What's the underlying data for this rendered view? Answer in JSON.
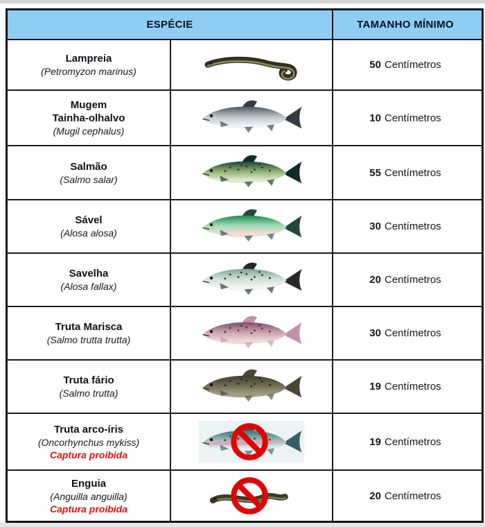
{
  "header": {
    "especie": "ESPÉCIE",
    "tamanho": "TAMANHO MÍNIMO"
  },
  "unit": "Centímetros",
  "colors": {
    "header_bg": "#8fcef4",
    "border": "#15151d",
    "text": "#101016",
    "prohibited_red": "#e01010",
    "prohibition_sign": "#e00505"
  },
  "rows": [
    {
      "names": [
        "Lampreia"
      ],
      "sci": "(Petromyzon marinus)",
      "size": "50",
      "fish": {
        "icon": "lamprey-fish-icon",
        "type": "eel",
        "variant": "lamprey",
        "body": "#32301f",
        "highlight": "#9c9a72",
        "prohibited": false
      }
    },
    {
      "names": [
        "Mugem",
        "Tainha-olhalvo"
      ],
      "sci": "(Mugil cephalus)",
      "size": "10",
      "fish": {
        "icon": "mullet-fish-icon",
        "type": "fish",
        "back": "#4e565e",
        "body": "#b9c1c7",
        "belly": "#f0f2f3",
        "tail": "#343b42",
        "prohibited": false
      }
    },
    {
      "names": [
        "Salmão"
      ],
      "sci": "(Salmo salar)",
      "size": "55",
      "fish": {
        "icon": "salmon-fish-icon",
        "type": "fish",
        "back": "#173f38",
        "body": "#8fb06e",
        "belly": "#dcead0",
        "tail": "#122b26",
        "spots": "#2a3a2a",
        "prohibited": false
      }
    },
    {
      "names": [
        "Sável"
      ],
      "sci": "(Alosa alosa)",
      "size": "30",
      "fish": {
        "icon": "allis-shad-fish-icon",
        "type": "fish",
        "back": "#168a4c",
        "body": "#9fd8b4",
        "belly": "#f5ddd2",
        "tail": "#23473c",
        "prohibited": false
      }
    },
    {
      "names": [
        "Savelha"
      ],
      "sci": "(Alosa fallax)",
      "size": "20",
      "fish": {
        "icon": "twaite-shad-fish-icon",
        "type": "fish",
        "back": "#7fa390",
        "body": "#cfe0d6",
        "belly": "#f0f5f1",
        "tail": "#26282a",
        "spots": "#2f3335",
        "prohibited": false
      }
    },
    {
      "names": [
        "Truta Marisca"
      ],
      "sci": "(Salmo trutta trutta)",
      "size": "30",
      "fish": {
        "icon": "sea-trout-fish-icon",
        "type": "fish",
        "back": "#7c4f66",
        "body": "#caa0ae",
        "belly": "#ecd9dc",
        "tail": "#c492a6",
        "spots": "#5f3040",
        "prohibited": false
      }
    },
    {
      "names": [
        "Truta fário"
      ],
      "sci": "(Salmo trutta)",
      "size": "19",
      "fish": {
        "icon": "brown-trout-fish-icon",
        "type": "fish",
        "back": "#3f3d2c",
        "body": "#6f6b52",
        "belly": "#a59d82",
        "tail": "#4a4736",
        "spots": "#26241a",
        "prohibited": false
      }
    },
    {
      "names": [
        "Truta arco-íris"
      ],
      "sci": "(Oncorhynchus mykiss)",
      "note": "Captura proibida",
      "size": "19",
      "fish": {
        "icon": "rainbow-trout-fish-icon",
        "type": "fish",
        "back": "#3f6f74",
        "body": "#9dbdbd",
        "belly": "#e8eff0",
        "tail": "#355f64",
        "spots": "#24454a",
        "stripe": "#dfa3b2",
        "bg": "#edf2f4",
        "prohibited": true
      }
    },
    {
      "names": [
        "Enguia"
      ],
      "sci": "(Anguilla anguilla)",
      "note": "Captura proibida",
      "size": "20",
      "fish": {
        "icon": "eel-fish-icon",
        "type": "eel",
        "variant": "eel",
        "body": "#3c3a26",
        "highlight": "#8f8c66",
        "prohibited": true
      }
    }
  ]
}
